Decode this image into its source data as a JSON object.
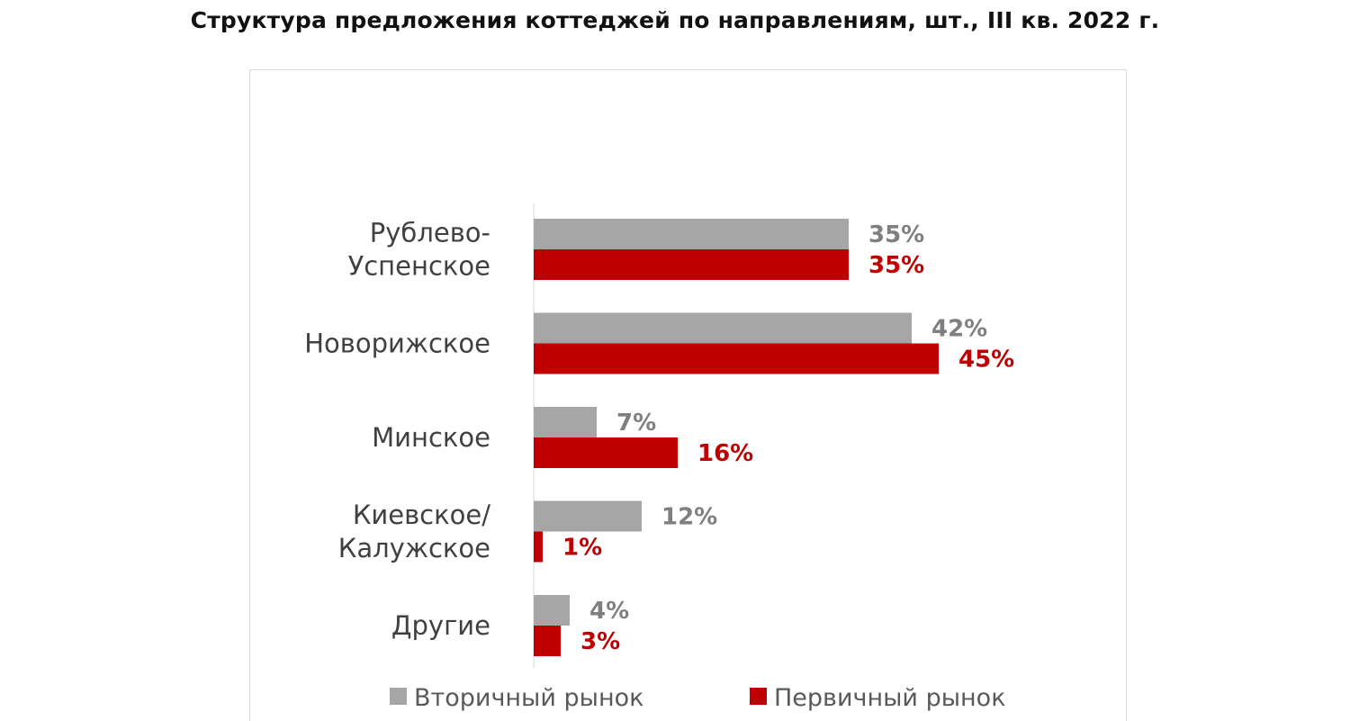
{
  "colors": {
    "secondary": "#a6a6a6",
    "primary": "#c00000",
    "secondary_label": "#7f7f7f",
    "primary_label": "#c00000",
    "axis": "#d9d9d9"
  },
  "chart_data": {
    "type": "bar",
    "orientation": "horizontal",
    "title": "Структура предложения коттеджей по направлениям, шт., III кв. 2022 г.",
    "xlabel": "",
    "ylabel": "",
    "categories": [
      [
        "Рублево-",
        "Успенское"
      ],
      [
        "Новорижское"
      ],
      [
        "Минское"
      ],
      [
        "Киевское/",
        "Калужское"
      ],
      [
        "Другие"
      ]
    ],
    "series": [
      {
        "name": "Вторичный рынок",
        "values": [
          35,
          42,
          7,
          12,
          4
        ],
        "labels": [
          "35%",
          "42%",
          "7%",
          "12%",
          "4%"
        ]
      },
      {
        "name": "Первичный рынок",
        "values": [
          35,
          45,
          16,
          1,
          3
        ],
        "labels": [
          "35%",
          "45%",
          "16%",
          "1%",
          "3%"
        ]
      }
    ],
    "xlim": [
      0,
      50
    ],
    "grid": false,
    "legend_position": "bottom"
  }
}
